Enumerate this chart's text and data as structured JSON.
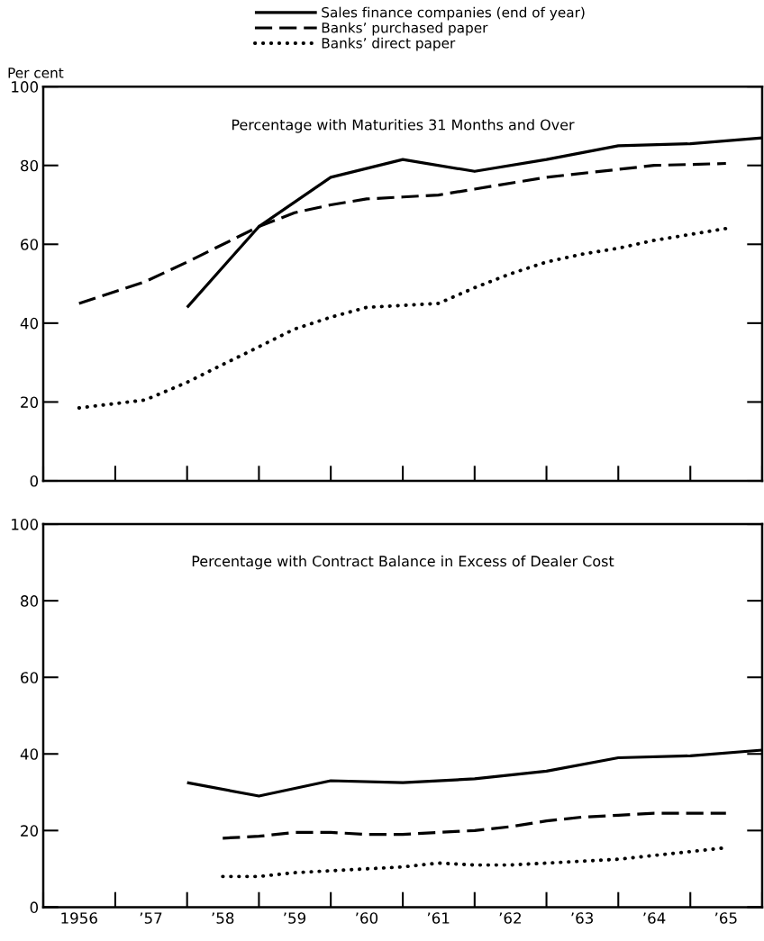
{
  "chart_data": [
    {
      "type": "line",
      "title": "Percentage with Maturities 31 Months and Over",
      "ylabel": "Per cent",
      "legend": "top",
      "tick_labels": "y",
      "xlim": [
        "1956-01",
        "1966-01"
      ],
      "ylim": [
        0,
        100
      ],
      "yticks": [
        0,
        20,
        40,
        60,
        80,
        100
      ],
      "series": [
        {
          "name": "Sales finance companies (end of year)",
          "color": "#000000",
          "line_style": "solid",
          "x": [
            "1958-01",
            "1959-01",
            "1960-01",
            "1961-01",
            "1962-01",
            "1963-01",
            "1964-01",
            "1965-01",
            "1966-01"
          ],
          "values": [
            44,
            64.5,
            77,
            81.5,
            78.5,
            81.5,
            85,
            85.5,
            87
          ]
        },
        {
          "name": "Banks’ purchased paper",
          "color": "#000000",
          "line_style": "dashed",
          "x": [
            "1956-07",
            "1957-06",
            "1958-01",
            "1959-01",
            "1959-07",
            "1960-01",
            "1960-07",
            "1961-01",
            "1961-07",
            "1962-01",
            "1963-01",
            "1964-01",
            "1964-07",
            "1965-07"
          ],
          "values": [
            45,
            50.5,
            55.5,
            64.5,
            68,
            70,
            71.5,
            72,
            72.5,
            74,
            77,
            79,
            80,
            80.5
          ]
        },
        {
          "name": "Banks’ direct paper",
          "color": "#000000",
          "line_style": "dotted",
          "x": [
            "1956-07",
            "1957-06",
            "1958-01",
            "1958-07",
            "1959-01",
            "1959-07",
            "1960-01",
            "1960-07",
            "1961-01",
            "1961-07",
            "1962-01",
            "1962-07",
            "1963-01",
            "1963-07",
            "1964-01",
            "1964-07",
            "1965-01",
            "1965-07"
          ],
          "values": [
            18.5,
            20.5,
            25,
            29.5,
            34,
            38.5,
            41.5,
            44,
            44.5,
            45,
            49,
            52.5,
            55.5,
            57.5,
            59,
            61,
            62.5,
            64
          ]
        }
      ]
    },
    {
      "type": "line",
      "title": "Percentage with Contract Balance in Excess of Dealer Cost",
      "xlim": [
        "1956-01",
        "1966-01"
      ],
      "ylim": [
        0,
        100
      ],
      "yticks": [
        0,
        20,
        40,
        60,
        80,
        100
      ],
      "xticks": [
        {
          "value": "1956-07",
          "label": "1956"
        },
        {
          "value": "1957-07",
          "label": "’57"
        },
        {
          "value": "1958-07",
          "label": "’58"
        },
        {
          "value": "1959-07",
          "label": "’59"
        },
        {
          "value": "1960-07",
          "label": "’60"
        },
        {
          "value": "1961-07",
          "label": "’61"
        },
        {
          "value": "1962-07",
          "label": "’62"
        },
        {
          "value": "1963-07",
          "label": "’63"
        },
        {
          "value": "1964-07",
          "label": "’64"
        },
        {
          "value": "1965-07",
          "label": "’65"
        }
      ],
      "series": [
        {
          "color": "#000000",
          "line_style": "solid",
          "x": [
            "1958-01",
            "1959-01",
            "1960-01",
            "1961-01",
            "1962-01",
            "1963-01",
            "1964-01",
            "1965-01",
            "1966-01"
          ],
          "values": [
            32.5,
            29,
            33,
            32.5,
            33.5,
            35.5,
            39,
            39.5,
            41
          ]
        },
        {
          "color": "#000000",
          "line_style": "dashed",
          "x": [
            "1958-07",
            "1959-01",
            "1959-07",
            "1960-01",
            "1960-07",
            "1961-01",
            "1961-07",
            "1962-01",
            "1962-07",
            "1963-01",
            "1963-07",
            "1964-01",
            "1964-07",
            "1965-07"
          ],
          "values": [
            18,
            18.5,
            19.5,
            19.5,
            19,
            19,
            19.5,
            20,
            21,
            22.5,
            23.5,
            24,
            24.5,
            24.5
          ]
        },
        {
          "color": "#000000",
          "line_style": "dotted",
          "x": [
            "1958-07",
            "1959-01",
            "1959-07",
            "1960-01",
            "1960-07",
            "1961-01",
            "1961-07",
            "1962-01",
            "1962-07",
            "1963-01",
            "1963-07",
            "1964-01",
            "1964-07",
            "1965-01",
            "1965-07"
          ],
          "values": [
            8,
            8,
            9,
            9.5,
            10,
            10.5,
            11.5,
            11,
            11,
            11.5,
            12,
            12.5,
            13.5,
            14.5,
            15.5
          ]
        }
      ]
    }
  ]
}
